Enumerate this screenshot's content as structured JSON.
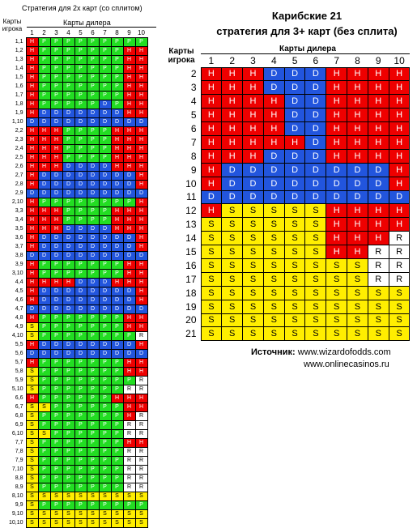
{
  "left": {
    "title": "Стратегия для 2х карт (со сплитом)",
    "player_label": "Карты игрока",
    "dealer_label": "Карты дилера",
    "columns": [
      "1",
      "2",
      "3",
      "4",
      "5",
      "6",
      "7",
      "8",
      "9",
      "10"
    ],
    "rows": [
      {
        "label": "1,1",
        "cells": "HPPPPPPPPP"
      },
      {
        "label": "1,2",
        "cells": "HPPPPPPPHH"
      },
      {
        "label": "1,3",
        "cells": "HPPPPPPPHH"
      },
      {
        "label": "1,4",
        "cells": "HPPPPPPPHH"
      },
      {
        "label": "1,5",
        "cells": "HPPPPPPPHH"
      },
      {
        "label": "1,6",
        "cells": "HPPPPPPPHH"
      },
      {
        "label": "1,7",
        "cells": "HPPPPPPPHH"
      },
      {
        "label": "1,8",
        "cells": "HPPPPPDPHH"
      },
      {
        "label": "1,9",
        "cells": "HDDDDDDDHH"
      },
      {
        "label": "1,10",
        "cells": "DDDDDDDDDD"
      },
      {
        "label": "2,2",
        "cells": "HHHPPPPHHH"
      },
      {
        "label": "2,3",
        "cells": "HHHPPPPHHH"
      },
      {
        "label": "2,4",
        "cells": "HHHPPPPHHH"
      },
      {
        "label": "2,5",
        "cells": "HHHPPPPHHH"
      },
      {
        "label": "2,6",
        "cells": "HHHDDDDHHH"
      },
      {
        "label": "2,7",
        "cells": "HDDDDDDDDH"
      },
      {
        "label": "2,8",
        "cells": "HDDDDDDDDH"
      },
      {
        "label": "2,9",
        "cells": "DDDDDDDDDD"
      },
      {
        "label": "2,10",
        "cells": "HPPPPPPPPH"
      },
      {
        "label": "3,3",
        "cells": "HHHPPPPHHH"
      },
      {
        "label": "3,4",
        "cells": "HHHPPPPHHH"
      },
      {
        "label": "3,5",
        "cells": "HHHDDDDHHH"
      },
      {
        "label": "3,6",
        "cells": "HDDDDDDDDH"
      },
      {
        "label": "3,7",
        "cells": "HDDDDDDDDH"
      },
      {
        "label": "3,8",
        "cells": "DDDDDDDDDD"
      },
      {
        "label": "3,9",
        "cells": "HPPPPPPPHH"
      },
      {
        "label": "3,10",
        "cells": "HPPPPPPPHH"
      },
      {
        "label": "4,4",
        "cells": "HHHHDDDHHH"
      },
      {
        "label": "4,5",
        "cells": "HDDDDDDDDH"
      },
      {
        "label": "4,6",
        "cells": "HDDDDDDDDH"
      },
      {
        "label": "4,7",
        "cells": "DDDDDDDDDD"
      },
      {
        "label": "4,8",
        "cells": "HPPPPPPPHH"
      },
      {
        "label": "4,9",
        "cells": "SPPPPPPPHH"
      },
      {
        "label": "4,10",
        "cells": "SPPPPPPPPR"
      },
      {
        "label": "5,5",
        "cells": "HDDDDDDDDH"
      },
      {
        "label": "5,6",
        "cells": "DDDDDDDDDD"
      },
      {
        "label": "5,7",
        "cells": "HPPPPPPPHH"
      },
      {
        "label": "5,8",
        "cells": "SPPPPPPPHH"
      },
      {
        "label": "5,9",
        "cells": "SPPPPPPPPR"
      },
      {
        "label": "5,10",
        "cells": "SPPPPPPPRR"
      },
      {
        "label": "6,6",
        "cells": "HPPPPPPHHH"
      },
      {
        "label": "6,7",
        "cells": "SSPPPPPPHH"
      },
      {
        "label": "6,8",
        "cells": "SPPPPPPPHR"
      },
      {
        "label": "6,9",
        "cells": "SPPPPPPPRR"
      },
      {
        "label": "6,10",
        "cells": "SSPPPPPPRR"
      },
      {
        "label": "7,7",
        "cells": "SPPPPPPPHH"
      },
      {
        "label": "7,8",
        "cells": "SPPPPPPPRR"
      },
      {
        "label": "7,9",
        "cells": "SPPPPPPPRR"
      },
      {
        "label": "7,10",
        "cells": "SPPPPPPPRR"
      },
      {
        "label": "8,8",
        "cells": "SPPPPPPPRR"
      },
      {
        "label": "8,9",
        "cells": "SPPPPPPPRR"
      },
      {
        "label": "8,10",
        "cells": "SSSSSSSSSS"
      },
      {
        "label": "9,9",
        "cells": "SPPPPPPPPP"
      },
      {
        "label": "9,10",
        "cells": "SSSSSSSSSS"
      },
      {
        "label": "10,10",
        "cells": "SSSSSSSSSS"
      }
    ]
  },
  "right": {
    "title_line1": "Карибские 21",
    "title_line2": "стратегия для 3+ карт (без сплита)",
    "player_label": "Карты игрока",
    "dealer_label": "Карты дилера",
    "columns": [
      "1",
      "2",
      "3",
      "4",
      "5",
      "6",
      "7",
      "8",
      "9",
      "10"
    ],
    "rows": [
      {
        "label": "2",
        "cells": "HHHDDDHHHH"
      },
      {
        "label": "3",
        "cells": "HHHDDDHHHH"
      },
      {
        "label": "4",
        "cells": "HHHHDDHHHH"
      },
      {
        "label": "5",
        "cells": "HHHHDDHHHH"
      },
      {
        "label": "6",
        "cells": "HHHHDDHHHH"
      },
      {
        "label": "7",
        "cells": "HHHHHDHHHH"
      },
      {
        "label": "8",
        "cells": "HHHDDDHHHH"
      },
      {
        "label": "9",
        "cells": "HDDDDDDDDH"
      },
      {
        "label": "10",
        "cells": "HDDDDDDDDH"
      },
      {
        "label": "11",
        "cells": "DDDDDDDDDD"
      },
      {
        "label": "12",
        "cells": "HSSSSSHHHH"
      },
      {
        "label": "13",
        "cells": "SSSSSSHHHH"
      },
      {
        "label": "14",
        "cells": "SSSSSSHHHR"
      },
      {
        "label": "15",
        "cells": "SSSSSSHHRR"
      },
      {
        "label": "16",
        "cells": "SSSSSSSSRR"
      },
      {
        "label": "17",
        "cells": "SSSSSSSSRR"
      },
      {
        "label": "18",
        "cells": "SSSSSSSSSS"
      },
      {
        "label": "19",
        "cells": "SSSSSSSSSS"
      },
      {
        "label": "20",
        "cells": "SSSSSSSSSS"
      },
      {
        "label": "21",
        "cells": "SSSSSSSSSS"
      }
    ]
  },
  "source": {
    "label": "Источник:",
    "site1": "www.wizardofodds.com",
    "site2": "www.onlinecasinos.ru"
  },
  "colors": {
    "H": "#ee0000",
    "D": "#2255dd",
    "P": "#22dd22",
    "S": "#ffee00",
    "R": "#ffffff"
  }
}
